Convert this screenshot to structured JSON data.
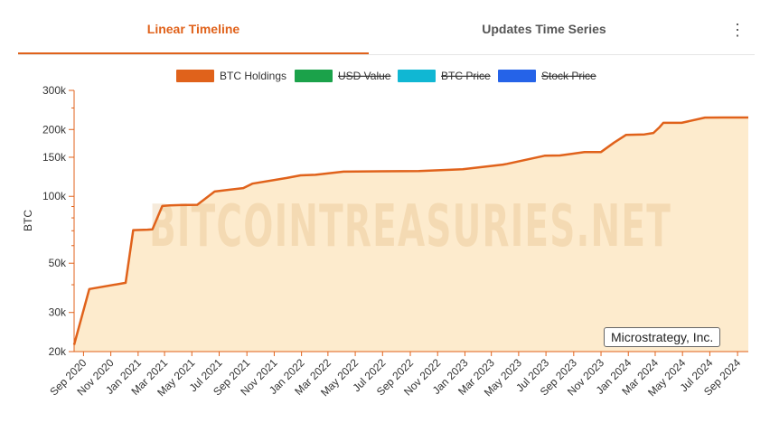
{
  "tabs": [
    {
      "label": "Linear Timeline",
      "active": true
    },
    {
      "label": "Updates Time Series",
      "active": false
    }
  ],
  "menu_icon": "vertical-ellipsis-icon",
  "watermark": "BITCOINTREASURIES.NET",
  "company_label": "Microstrategy, Inc.",
  "colors": {
    "accent": "#e0621b",
    "area_fill": "#fdebcd",
    "usd_value": "#1ba24a",
    "btc_price": "#10b7d3",
    "stock_price": "#2563e8"
  },
  "chart_data": {
    "type": "area",
    "ylabel": "BTC",
    "y_scale": "log",
    "ylim": [
      20000,
      300000
    ],
    "y_ticks": [
      {
        "value": 300000,
        "label": "300k"
      },
      {
        "value": 200000,
        "label": "200k"
      },
      {
        "value": 150000,
        "label": "150k"
      },
      {
        "value": 100000,
        "label": "100k"
      },
      {
        "value": 50000,
        "label": "50k"
      },
      {
        "value": 30000,
        "label": "30k"
      },
      {
        "value": 20000,
        "label": "20k"
      }
    ],
    "y_minor_ticks": [
      250000,
      90000,
      80000,
      70000,
      60000,
      40000
    ],
    "xlim": [
      "2020-08-11",
      "2024-09-25"
    ],
    "x_ticks": [
      {
        "date": "2020-09-01",
        "label": "Sep 2020"
      },
      {
        "date": "2020-11-01",
        "label": "Nov 2020"
      },
      {
        "date": "2021-01-01",
        "label": "Jan 2021"
      },
      {
        "date": "2021-03-01",
        "label": "Mar 2021"
      },
      {
        "date": "2021-05-01",
        "label": "May 2021"
      },
      {
        "date": "2021-07-01",
        "label": "Jul 2021"
      },
      {
        "date": "2021-09-01",
        "label": "Sep 2021"
      },
      {
        "date": "2021-11-01",
        "label": "Nov 2021"
      },
      {
        "date": "2022-01-01",
        "label": "Jan 2022"
      },
      {
        "date": "2022-03-01",
        "label": "Mar 2022"
      },
      {
        "date": "2022-05-01",
        "label": "May 2022"
      },
      {
        "date": "2022-07-01",
        "label": "Jul 2022"
      },
      {
        "date": "2022-09-01",
        "label": "Sep 2022"
      },
      {
        "date": "2022-11-01",
        "label": "Nov 2022"
      },
      {
        "date": "2023-01-01",
        "label": "Jan 2023"
      },
      {
        "date": "2023-03-01",
        "label": "Mar 2023"
      },
      {
        "date": "2023-05-01",
        "label": "May 2023"
      },
      {
        "date": "2023-07-01",
        "label": "Jul 2023"
      },
      {
        "date": "2023-09-01",
        "label": "Sep 2023"
      },
      {
        "date": "2023-11-01",
        "label": "Nov 2023"
      },
      {
        "date": "2024-01-01",
        "label": "Jan 2024"
      },
      {
        "date": "2024-03-01",
        "label": "Mar 2024"
      },
      {
        "date": "2024-05-01",
        "label": "May 2024"
      },
      {
        "date": "2024-07-01",
        "label": "Jul 2024"
      },
      {
        "date": "2024-09-01",
        "label": "Sep 2024"
      }
    ],
    "legend": [
      {
        "name": "BTC Holdings",
        "color": "#e0621b",
        "enabled": true
      },
      {
        "name": "USD Value",
        "color": "#1ba24a",
        "enabled": false
      },
      {
        "name": "BTC Price",
        "color": "#10b7d3",
        "enabled": false
      },
      {
        "name": "Stock Price",
        "color": "#2563e8",
        "enabled": false
      }
    ],
    "legend_position": "top-center",
    "series": [
      {
        "name": "BTC Holdings",
        "color": "#e0621b",
        "points": [
          [
            "2020-08-11",
            21454
          ],
          [
            "2020-09-14",
            38250
          ],
          [
            "2020-12-04",
            40824
          ],
          [
            "2020-12-21",
            70470
          ],
          [
            "2021-01-22",
            70784
          ],
          [
            "2021-02-02",
            71079
          ],
          [
            "2021-02-24",
            90531
          ],
          [
            "2021-03-12",
            91064
          ],
          [
            "2021-04-05",
            91326
          ],
          [
            "2021-05-13",
            91579
          ],
          [
            "2021-06-21",
            105085
          ],
          [
            "2021-08-24",
            108992
          ],
          [
            "2021-09-13",
            114042
          ],
          [
            "2021-11-29",
            121044
          ],
          [
            "2021-12-30",
            124391
          ],
          [
            "2022-02-01",
            125051
          ],
          [
            "2022-04-05",
            129218
          ],
          [
            "2022-06-29",
            129699
          ],
          [
            "2022-09-20",
            130000
          ],
          [
            "2022-12-27",
            132500
          ],
          [
            "2023-03-27",
            138955
          ],
          [
            "2023-04-05",
            140000
          ],
          [
            "2023-06-28",
            152333
          ],
          [
            "2023-08-01",
            152800
          ],
          [
            "2023-09-25",
            158245
          ],
          [
            "2023-11-01",
            158400
          ],
          [
            "2023-11-30",
            174530
          ],
          [
            "2023-12-27",
            189150
          ],
          [
            "2024-02-06",
            190000
          ],
          [
            "2024-02-26",
            193000
          ],
          [
            "2024-03-11",
            205000
          ],
          [
            "2024-03-19",
            214246
          ],
          [
            "2024-04-29",
            214400
          ],
          [
            "2024-06-20",
            226331
          ],
          [
            "2024-08-01",
            226500
          ],
          [
            "2024-09-20",
            226500
          ]
        ]
      }
    ]
  }
}
